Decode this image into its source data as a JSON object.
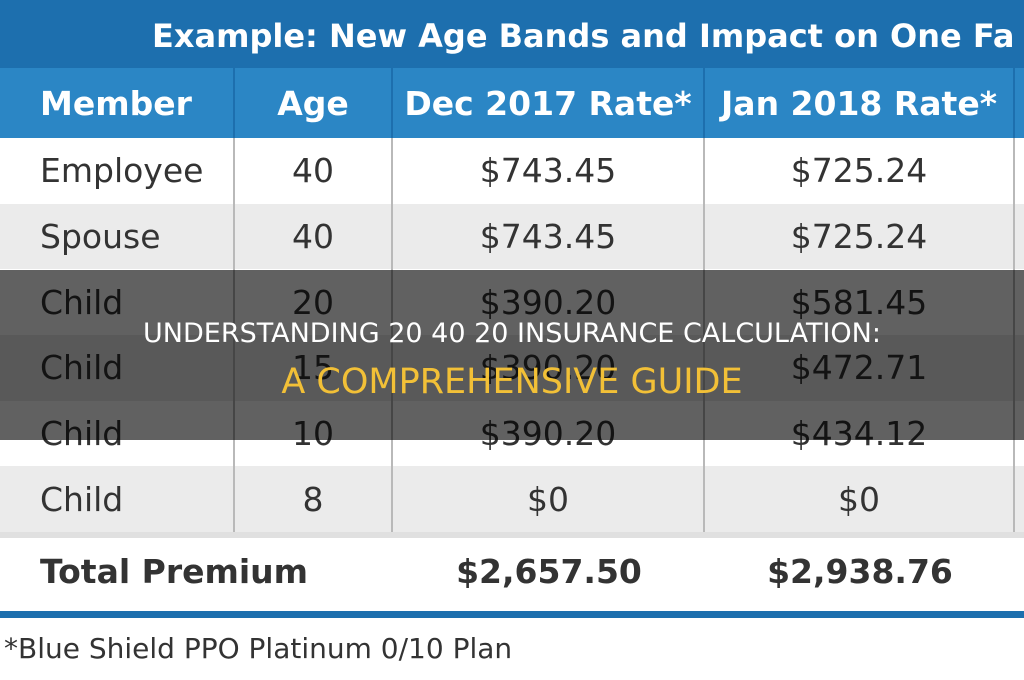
{
  "table": {
    "title": "Example: New Age Bands and Impact on One Fa",
    "columns": [
      "Member",
      "Age",
      "Dec 2017 Rate*",
      "Jan 2018 Rate*"
    ],
    "rows": [
      [
        "Employee",
        "40",
        "$743.45",
        "$725.24"
      ],
      [
        "Spouse",
        "40",
        "$743.45",
        "$725.24"
      ],
      [
        "Child",
        "20",
        "$390.20",
        "$581.45"
      ],
      [
        "Child",
        "15",
        "$390.20",
        "$472.71"
      ],
      [
        "Child",
        "10",
        "$390.20",
        "$434.12"
      ],
      [
        "Child",
        "8",
        "$0",
        "$0"
      ]
    ],
    "total": {
      "label": "Total Premium",
      "dec": "$2,657.50",
      "jan": "$2,938.76"
    },
    "footnote": "*Blue Shield PPO Platinum 0/10 Plan"
  },
  "overlay": {
    "line1": "UNDERSTANDING 20 40 20 INSURANCE CALCULATION:",
    "line2": "A COMPREHENSIVE GUIDE"
  }
}
